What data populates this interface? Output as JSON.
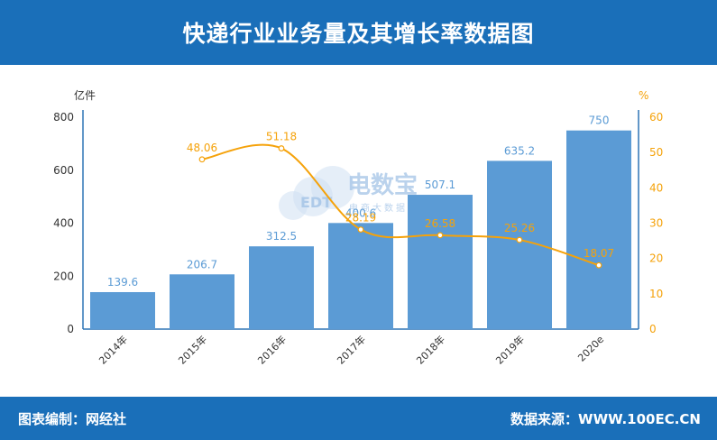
{
  "header": {
    "title": "快递行业业务量及其增长率数据图"
  },
  "watermark": {
    "brand": "电数宝",
    "logo": "EDT",
    "tagline": "电商大数据库"
  },
  "footer": {
    "editor_label": "图表编制：网经社",
    "source_label": "数据来源：WWW.100EC.CN"
  },
  "colors": {
    "header_bg": "#1a6fb9",
    "bar": "#5b9bd5",
    "line": "#f5a20a",
    "axis": "#2e75b6"
  },
  "chart_data": {
    "type": "bar",
    "categories": [
      "2014年",
      "2015年",
      "2016年",
      "2017年",
      "2018年",
      "2019年",
      "2020e"
    ],
    "series": [
      {
        "name": "",
        "type": "bar",
        "axis": "left",
        "values": [
          139.6,
          206.7,
          312.5,
          400.6,
          507.1,
          635.2,
          750
        ]
      },
      {
        "name": "",
        "type": "line",
        "axis": "right",
        "values": [
          null,
          48.06,
          51.18,
          28.19,
          26.58,
          25.26,
          18.07
        ]
      }
    ],
    "left_axis": {
      "unit": "亿件",
      "ylim": [
        0,
        800
      ],
      "ticks": [
        0,
        200,
        400,
        600,
        800
      ]
    },
    "right_axis": {
      "unit": "%",
      "ylim": [
        0,
        60
      ],
      "ticks": [
        0,
        10,
        20,
        30,
        40,
        50,
        60
      ]
    },
    "bar_labels": [
      "139.6",
      "206.7",
      "312.5",
      "400.6",
      "507.1",
      "635.2",
      "750"
    ],
    "line_labels": [
      "",
      "48.06",
      "51.18",
      "28.19",
      "26.58",
      "25.26",
      "18.07"
    ]
  }
}
